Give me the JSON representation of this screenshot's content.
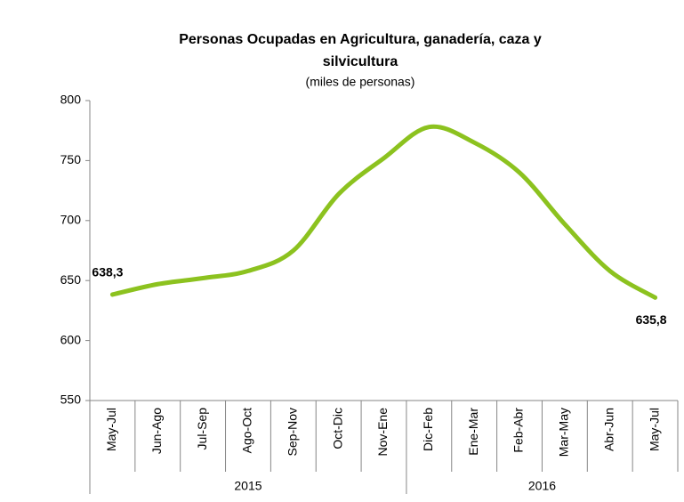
{
  "chart_data": {
    "type": "line",
    "title": "Personas Ocupadas en Agricultura, ganadería, caza y",
    "title_line2": "silvicultura",
    "subtitle": "(miles de personas)",
    "groups": [
      {
        "label": "2015",
        "categories": [
          "May-Jul",
          "Jun-Ago",
          "Jul-Sep",
          "Ago-Oct",
          "Sep-Nov",
          "Oct-Dic",
          "Nov-Ene"
        ]
      },
      {
        "label": "2016",
        "categories": [
          "Dic-Feb",
          "Ene-Mar",
          "Feb-Abr",
          "Mar-May",
          "Abr-Jun",
          "May-Jul"
        ]
      }
    ],
    "series": [
      {
        "color": "#8cc21f",
        "values": [
          638.3,
          647,
          652,
          658,
          675,
          722,
          752,
          778,
          765,
          740,
          697,
          658,
          635.8
        ],
        "value_labels": [
          "638,3",
          null,
          null,
          null,
          null,
          null,
          null,
          null,
          null,
          null,
          null,
          null,
          "635,8"
        ]
      }
    ],
    "ylim": [
      550,
      800
    ],
    "yticks": [
      550,
      600,
      650,
      700,
      750,
      800
    ],
    "grid": false
  }
}
